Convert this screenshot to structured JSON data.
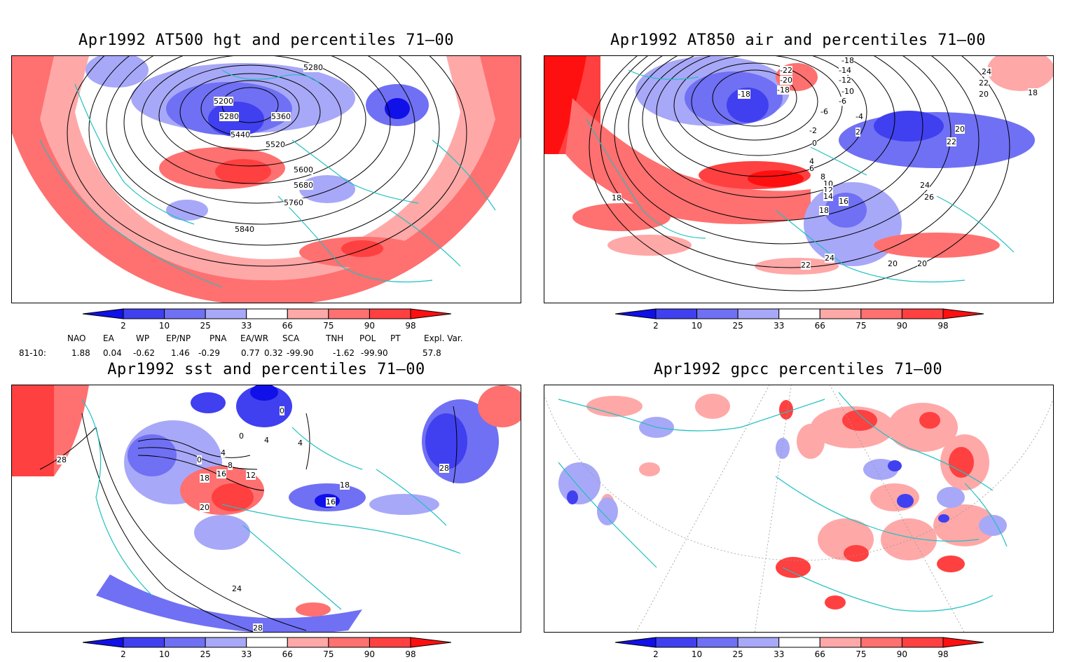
{
  "colorbar": {
    "labels": [
      "2",
      "10",
      "25",
      "33",
      "66",
      "75",
      "90",
      "98"
    ],
    "colors": [
      "#1010e8",
      "#4040f0",
      "#7070f4",
      "#a8a8f8",
      "#ffffff",
      "#ffa8a8",
      "#ff7070",
      "#ff4040",
      "#ff1010"
    ]
  },
  "panels": [
    {
      "title": "Apr1992 AT500 hgt and percentiles 71–00",
      "contour_labels": [
        "5280",
        "5200",
        "5280",
        "5360",
        "5440",
        "5520",
        "5600",
        "5680",
        "5760",
        "5840"
      ]
    },
    {
      "title": "Apr1992 AT850 air and percentiles 71–00",
      "contour_labels": [
        "-18",
        "-22",
        "-14",
        "-20",
        "-12",
        "-18",
        "-10",
        "-18",
        "-6",
        "-6",
        "-4",
        "-2",
        "2",
        "0",
        "4",
        "6",
        "8",
        "10",
        "12",
        "14",
        "16",
        "18",
        "18",
        "24",
        "22",
        "20",
        "18",
        "20",
        "22",
        "24",
        "26",
        "24",
        "22",
        "20",
        "20"
      ]
    },
    {
      "title": "Apr1992 sst and percentiles 71–00",
      "contour_labels": [
        "28",
        "0",
        "0",
        "4",
        "4",
        "4",
        "0",
        "8",
        "12",
        "16",
        "18",
        "20",
        "16",
        "18",
        "28",
        "24",
        "28"
      ]
    },
    {
      "title": "Apr1992 gpcc percentiles 71–00",
      "contour_labels": []
    }
  ],
  "indices": {
    "headers": [
      "NAO",
      "EA",
      "WP",
      "EP/NP",
      "PNA",
      "EA/WR",
      "SCA",
      "TNH",
      "POL",
      "PT",
      "Expl. Var."
    ],
    "row_label": "81-10:",
    "values": [
      "1.88",
      "0.04",
      "-0.62",
      "1.46",
      "-0.29",
      "0.77",
      "0.32",
      "-99.90",
      "-1.62",
      "-99.90",
      "57.8"
    ]
  }
}
